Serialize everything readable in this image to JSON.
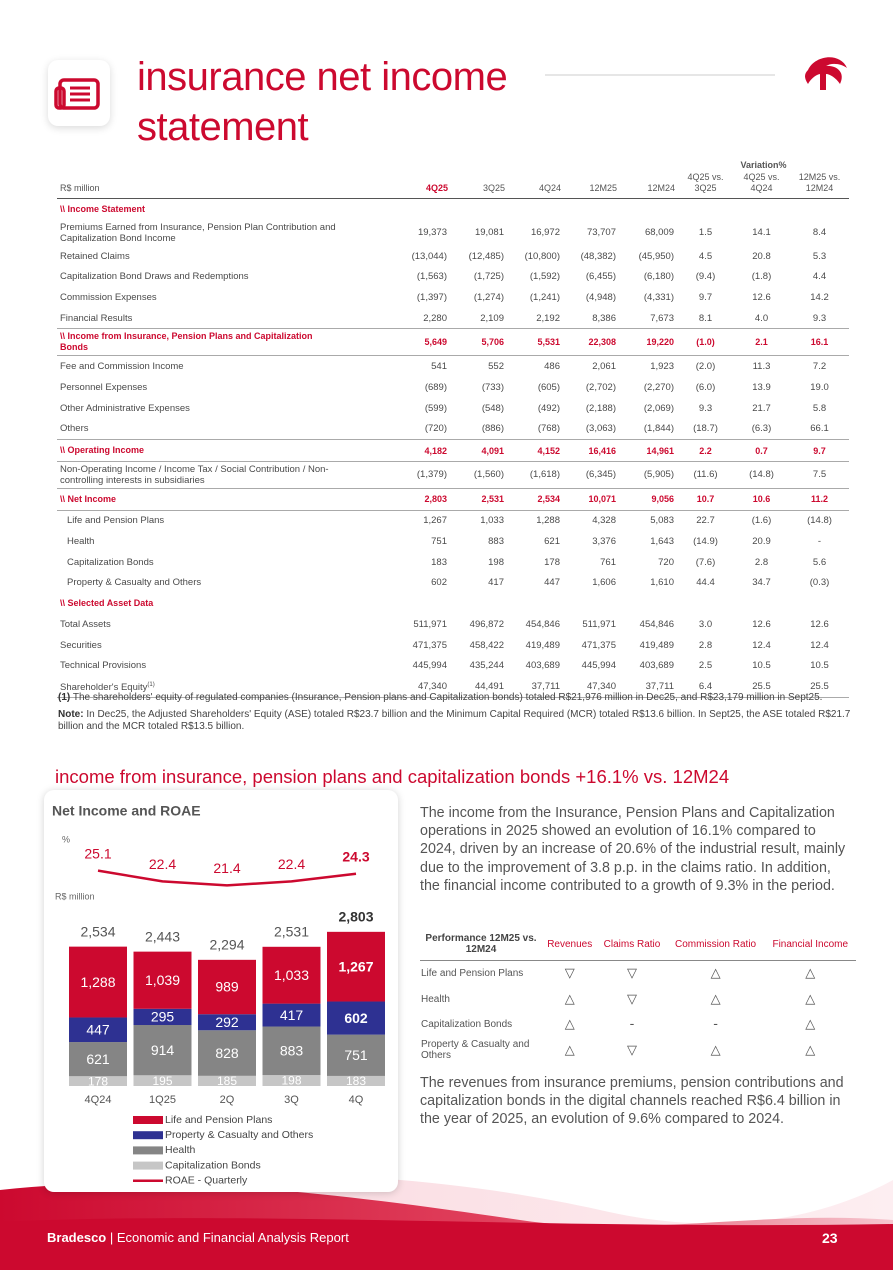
{
  "header": {
    "title": "insurance net income statement"
  },
  "table": {
    "unit": "R$ million",
    "variation_label": "Variation%",
    "columns": [
      "4Q25",
      "3Q25",
      "4Q24",
      "12M25",
      "12M24",
      "4Q25 vs. 3Q25",
      "4Q25 vs. 4Q24",
      "12M25 vs. 12M24"
    ],
    "rows": [
      {
        "label": "\\\\ Income Statement",
        "style": "section"
      },
      {
        "label": "Premiums Earned from Insurance, Pension Plan Contribution and Capitalization Bond Income",
        "style": "item",
        "values": [
          "19,373",
          "19,081",
          "16,972",
          "73,707",
          "68,009",
          "1.5",
          "14.1",
          "8.4"
        ]
      },
      {
        "label": "Retained Claims",
        "style": "item",
        "values": [
          "(13,044)",
          "(12,485)",
          "(10,800)",
          "(48,382)",
          "(45,950)",
          "4.5",
          "20.8",
          "5.3"
        ]
      },
      {
        "label": "Capitalization Bond Draws and Redemptions",
        "style": "item",
        "values": [
          "(1,563)",
          "(1,725)",
          "(1,592)",
          "(6,455)",
          "(6,180)",
          "(9.4)",
          "(1.8)",
          "4.4"
        ]
      },
      {
        "label": "Commission Expenses",
        "style": "item",
        "values": [
          "(1,397)",
          "(1,274)",
          "(1,241)",
          "(4,948)",
          "(4,331)",
          "9.7",
          "12.6",
          "14.2"
        ]
      },
      {
        "label": "Financial Results",
        "style": "item",
        "values": [
          "2,280",
          "2,109",
          "2,192",
          "8,386",
          "7,673",
          "8.1",
          "4.0",
          "9.3"
        ]
      },
      {
        "label": "\\\\ Income from Insurance, Pension Plans and Capitalization Bonds",
        "style": "total",
        "values": [
          "5,649",
          "5,706",
          "5,531",
          "22,308",
          "19,220",
          "(1.0)",
          "2.1",
          "16.1"
        ]
      },
      {
        "label": "Fee and Commission Income",
        "style": "item",
        "values": [
          "541",
          "552",
          "486",
          "2,061",
          "1,923",
          "(2.0)",
          "11.3",
          "7.2"
        ]
      },
      {
        "label": "Personnel Expenses",
        "style": "item",
        "values": [
          "(689)",
          "(733)",
          "(605)",
          "(2,702)",
          "(2,270)",
          "(6.0)",
          "13.9",
          "19.0"
        ]
      },
      {
        "label": "Other Administrative Expenses",
        "style": "item",
        "values": [
          "(599)",
          "(548)",
          "(492)",
          "(2,188)",
          "(2,069)",
          "9.3",
          "21.7",
          "5.8"
        ]
      },
      {
        "label": "Others",
        "style": "item",
        "values": [
          "(720)",
          "(886)",
          "(768)",
          "(3,063)",
          "(1,844)",
          "(18.7)",
          "(6.3)",
          "66.1"
        ]
      },
      {
        "label": "\\\\ Operating Income",
        "style": "total",
        "values": [
          "4,182",
          "4,091",
          "4,152",
          "16,416",
          "14,961",
          "2.2",
          "0.7",
          "9.7"
        ]
      },
      {
        "label": "Non-Operating Income / Income Tax / Social Contribution / Non-controlling interests in subsidiaries",
        "style": "item",
        "values": [
          "(1,379)",
          "(1,560)",
          "(1,618)",
          "(6,345)",
          "(5,905)",
          "(11.6)",
          "(14.8)",
          "7.5"
        ]
      },
      {
        "label": "\\\\ Net Income",
        "style": "total",
        "values": [
          "2,803",
          "2,531",
          "2,534",
          "10,071",
          "9,056",
          "10.7",
          "10.6",
          "11.2"
        ]
      },
      {
        "label": "Life and Pension Plans",
        "style": "sub",
        "values": [
          "1,267",
          "1,033",
          "1,288",
          "4,328",
          "5,083",
          "22.7",
          "(1.6)",
          "(14.8)"
        ]
      },
      {
        "label": "Health",
        "style": "sub",
        "values": [
          "751",
          "883",
          "621",
          "3,376",
          "1,643",
          "(14.9)",
          "20.9",
          "-"
        ]
      },
      {
        "label": "Capitalization Bonds",
        "style": "sub",
        "values": [
          "183",
          "198",
          "178",
          "761",
          "720",
          "(7.6)",
          "2.8",
          "5.6"
        ]
      },
      {
        "label": "Property & Casualty and Others",
        "style": "sub",
        "values": [
          "602",
          "417",
          "447",
          "1,606",
          "1,610",
          "44.4",
          "34.7",
          "(0.3)"
        ]
      },
      {
        "label": "\\\\ Selected Asset Data",
        "style": "section"
      },
      {
        "label": "Total Assets",
        "style": "item",
        "values": [
          "511,971",
          "496,872",
          "454,846",
          "511,971",
          "454,846",
          "3.0",
          "12.6",
          "12.6"
        ]
      },
      {
        "label": "Securities",
        "style": "item",
        "values": [
          "471,375",
          "458,422",
          "419,489",
          "471,375",
          "419,489",
          "2.8",
          "12.4",
          "12.4"
        ]
      },
      {
        "label": "Technical Provisions",
        "style": "item",
        "values": [
          "445,994",
          "435,244",
          "403,689",
          "445,994",
          "403,689",
          "2.5",
          "10.5",
          "10.5"
        ]
      },
      {
        "label": "Shareholder's Equity",
        "note_mark": "(1)",
        "style": "item",
        "values": [
          "47,340",
          "44,491",
          "37,711",
          "47,340",
          "37,711",
          "6.4",
          "25.5",
          "25.5"
        ]
      }
    ]
  },
  "notes": [
    {
      "mark": "(1)",
      "text": "The shareholders' equity of regulated companies (Insurance, Pension plans and Capitalization bonds) totaled R$21,976 million in Dec25, and R$23,179 million in Sept25."
    },
    {
      "mark": "Note:",
      "text": "In Dec25, the Adjusted Shareholders' Equity (ASE) totaled R$23.7 billion and the Minimum Capital Required (MCR) totaled R$13.6 billion. In Sept25, the ASE totaled R$21.7 billion and the MCR totaled R$13.5 billion."
    }
  ],
  "section_title": "income from insurance, pension plans and capitalization bonds +16.1% vs. 12M24",
  "chart": {
    "type": "stacked_bar_line",
    "title": "Net Income and ROAE",
    "line_unit": "%",
    "bar_unit": "R$ million",
    "categories": [
      "4Q24",
      "1Q25",
      "2Q",
      "3Q",
      "4Q"
    ],
    "series": [
      {
        "name": "Capitalization Bonds",
        "color": "#c6c6c6",
        "values": [
          178,
          195,
          185,
          198,
          183
        ]
      },
      {
        "name": "Health",
        "color": "#858585",
        "values": [
          621,
          914,
          828,
          883,
          751
        ]
      },
      {
        "name": "Property & Casualty and Others",
        "color": "#2e3192",
        "values": [
          447,
          295,
          292,
          417,
          602
        ]
      },
      {
        "name": "Life and Pension Plans",
        "color": "#cc092f",
        "values": [
          1288,
          1039,
          989,
          1033,
          1267
        ]
      }
    ],
    "totals": [
      2534,
      2443,
      2294,
      2531,
      2803
    ],
    "value_labels_totals": [
      "2,534",
      "2,443",
      "2,294",
      "2,531",
      "2,803"
    ],
    "value_labels": [
      [
        "178",
        "195",
        "185",
        "198",
        "183"
      ],
      [
        "621",
        "914",
        "828",
        "883",
        "751"
      ],
      [
        "447",
        "295",
        "292",
        "417",
        "602"
      ],
      [
        "1,288",
        "1,039",
        "989",
        "1,033",
        "1,267"
      ]
    ],
    "line": {
      "name": "ROAE - Quarterly",
      "color": "#cc092f",
      "values": [
        25.1,
        22.4,
        21.4,
        22.4,
        24.3
      ]
    },
    "legend": [
      "Life and Pension Plans",
      "Property & Casualty and Others",
      "Health",
      "Capitalization Bonds",
      "ROAE - Quarterly"
    ]
  },
  "paragraphs": [
    "The income from the Insurance, Pension Plans and Capitalization operations in 2025 showed an evolution of 16.1% compared to 2024, driven by an increase of 20.6% of the industrial result, mainly due to the improvement of 3.8 p.p. in the claims ratio. In addition, the financial income contributed to a growth of 9.3% in the period.",
    "The revenues from insurance premiums, pension contributions and capitalization bonds in the digital channels reached R$6.4 billion in the year of 2025, an evolution of 9.6% compared to 2024."
  ],
  "performance": {
    "columns": [
      "Performance 12M25 vs. 12M24",
      "Revenues",
      "Claims Ratio",
      "Commission Ratio",
      "Financial Income"
    ],
    "rows": [
      [
        "Life and Pension Plans",
        "▽",
        "▽",
        "△",
        "△"
      ],
      [
        "Health",
        "△",
        "▽",
        "△",
        "△"
      ],
      [
        "Capitalization Bonds",
        "△",
        "-",
        "-",
        "△"
      ],
      [
        "Property & Casualty and Others",
        "△",
        "▽",
        "△",
        "△"
      ]
    ]
  },
  "footer": {
    "brand": "Bradesco",
    "report": "| Economic and Financial Analysis Report",
    "page": "23"
  }
}
